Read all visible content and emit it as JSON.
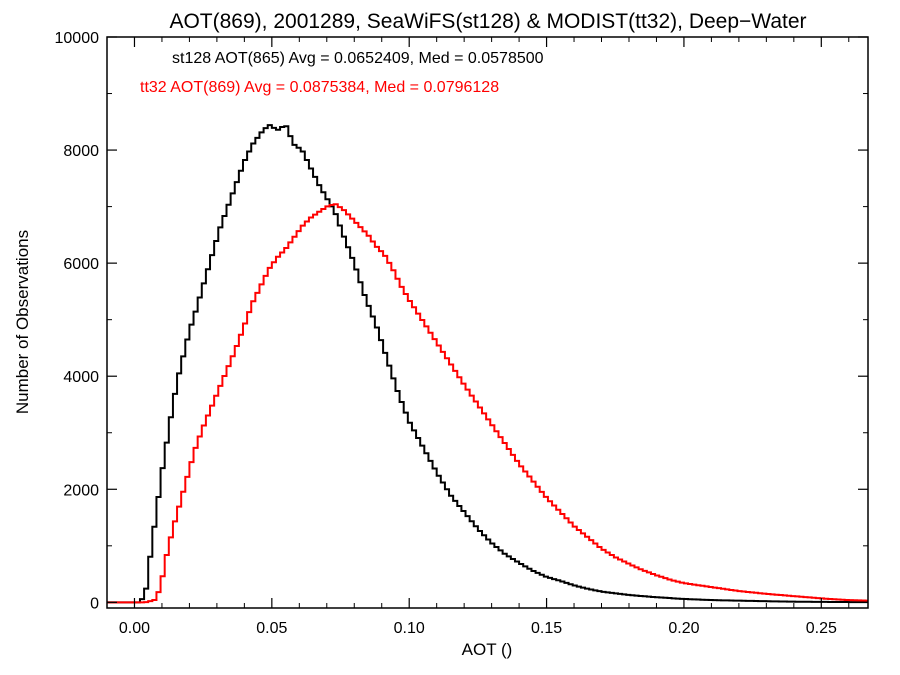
{
  "chart_data": {
    "type": "line",
    "title": "AOT(869), 2001289, SeaWiFS(st128) & MODIST(tt32), Deep−Water",
    "xlabel": "AOT ()",
    "ylabel": "Number of Observations",
    "xlim": [
      -0.01,
      0.267
    ],
    "ylim": [
      -100,
      10000
    ],
    "x_ticks": [
      0.0,
      0.05,
      0.1,
      0.15,
      0.2,
      0.25
    ],
    "x_tick_labels": [
      "0.00",
      "0.05",
      "0.10",
      "0.15",
      "0.20",
      "0.25"
    ],
    "y_ticks": [
      0,
      2000,
      4000,
      6000,
      8000,
      10000
    ],
    "y_tick_labels": [
      "0",
      "2000",
      "4000",
      "6000",
      "8000",
      "10000"
    ],
    "grid": false,
    "legend_placement": "top-left",
    "annotations": [
      {
        "text": "st128 AOT(865) Avg = 0.0652409, Med = 0.0578500",
        "color": "#000000"
      },
      {
        "text": "tt32 AOT(869) Avg = 0.0875384, Med = 0.0796128",
        "color": "#ff0000"
      }
    ],
    "series": [
      {
        "color": "#000000",
        "points": [
          [
            -0.01,
            0
          ],
          [
            0.0,
            0
          ],
          [
            0.002,
            0
          ],
          [
            0.004,
            150
          ],
          [
            0.006,
            900
          ],
          [
            0.008,
            1600
          ],
          [
            0.01,
            2300
          ],
          [
            0.012,
            2900
          ],
          [
            0.014,
            3500
          ],
          [
            0.016,
            4000
          ],
          [
            0.018,
            4400
          ],
          [
            0.02,
            4800
          ],
          [
            0.022,
            5100
          ],
          [
            0.025,
            5600
          ],
          [
            0.028,
            6100
          ],
          [
            0.031,
            6600
          ],
          [
            0.034,
            7000
          ],
          [
            0.037,
            7400
          ],
          [
            0.04,
            7800
          ],
          [
            0.043,
            8100
          ],
          [
            0.046,
            8300
          ],
          [
            0.049,
            8450
          ],
          [
            0.052,
            8350
          ],
          [
            0.055,
            8450
          ],
          [
            0.058,
            8100
          ],
          [
            0.061,
            8000
          ],
          [
            0.064,
            7700
          ],
          [
            0.067,
            7400
          ],
          [
            0.07,
            7150
          ],
          [
            0.073,
            6900
          ],
          [
            0.076,
            6500
          ],
          [
            0.08,
            6000
          ],
          [
            0.084,
            5400
          ],
          [
            0.088,
            4900
          ],
          [
            0.092,
            4300
          ],
          [
            0.096,
            3700
          ],
          [
            0.1,
            3200
          ],
          [
            0.105,
            2750
          ],
          [
            0.11,
            2300
          ],
          [
            0.115,
            1900
          ],
          [
            0.12,
            1600
          ],
          [
            0.125,
            1300
          ],
          [
            0.13,
            1050
          ],
          [
            0.135,
            850
          ],
          [
            0.14,
            700
          ],
          [
            0.145,
            560
          ],
          [
            0.15,
            450
          ],
          [
            0.155,
            380
          ],
          [
            0.16,
            300
          ],
          [
            0.165,
            240
          ],
          [
            0.17,
            190
          ],
          [
            0.18,
            130
          ],
          [
            0.19,
            90
          ],
          [
            0.2,
            60
          ],
          [
            0.21,
            40
          ],
          [
            0.22,
            30
          ],
          [
            0.23,
            20
          ],
          [
            0.24,
            12
          ],
          [
            0.25,
            8
          ],
          [
            0.267,
            3
          ]
        ]
      },
      {
        "color": "#ff0000",
        "points": [
          [
            -0.01,
            0
          ],
          [
            0.0,
            0
          ],
          [
            0.004,
            0
          ],
          [
            0.008,
            50
          ],
          [
            0.01,
            400
          ],
          [
            0.012,
            900
          ],
          [
            0.014,
            1300
          ],
          [
            0.016,
            1650
          ],
          [
            0.018,
            2000
          ],
          [
            0.02,
            2350
          ],
          [
            0.022,
            2700
          ],
          [
            0.025,
            3100
          ],
          [
            0.028,
            3450
          ],
          [
            0.031,
            3800
          ],
          [
            0.034,
            4150
          ],
          [
            0.037,
            4500
          ],
          [
            0.04,
            4900
          ],
          [
            0.043,
            5300
          ],
          [
            0.046,
            5600
          ],
          [
            0.049,
            5900
          ],
          [
            0.052,
            6100
          ],
          [
            0.055,
            6250
          ],
          [
            0.058,
            6450
          ],
          [
            0.061,
            6650
          ],
          [
            0.064,
            6800
          ],
          [
            0.067,
            6900
          ],
          [
            0.07,
            7000
          ],
          [
            0.073,
            7050
          ],
          [
            0.076,
            6950
          ],
          [
            0.079,
            6800
          ],
          [
            0.082,
            6650
          ],
          [
            0.085,
            6500
          ],
          [
            0.088,
            6300
          ],
          [
            0.091,
            6150
          ],
          [
            0.094,
            5900
          ],
          [
            0.097,
            5600
          ],
          [
            0.1,
            5350
          ],
          [
            0.104,
            5050
          ],
          [
            0.108,
            4750
          ],
          [
            0.112,
            4450
          ],
          [
            0.116,
            4150
          ],
          [
            0.12,
            3850
          ],
          [
            0.125,
            3500
          ],
          [
            0.13,
            3150
          ],
          [
            0.135,
            2800
          ],
          [
            0.14,
            2450
          ],
          [
            0.145,
            2150
          ],
          [
            0.15,
            1850
          ],
          [
            0.155,
            1600
          ],
          [
            0.16,
            1350
          ],
          [
            0.165,
            1150
          ],
          [
            0.17,
            950
          ],
          [
            0.175,
            800
          ],
          [
            0.18,
            680
          ],
          [
            0.185,
            570
          ],
          [
            0.19,
            480
          ],
          [
            0.195,
            400
          ],
          [
            0.2,
            340
          ],
          [
            0.21,
            270
          ],
          [
            0.22,
            200
          ],
          [
            0.23,
            150
          ],
          [
            0.24,
            110
          ],
          [
            0.25,
            70
          ],
          [
            0.26,
            40
          ],
          [
            0.267,
            30
          ]
        ]
      }
    ]
  }
}
